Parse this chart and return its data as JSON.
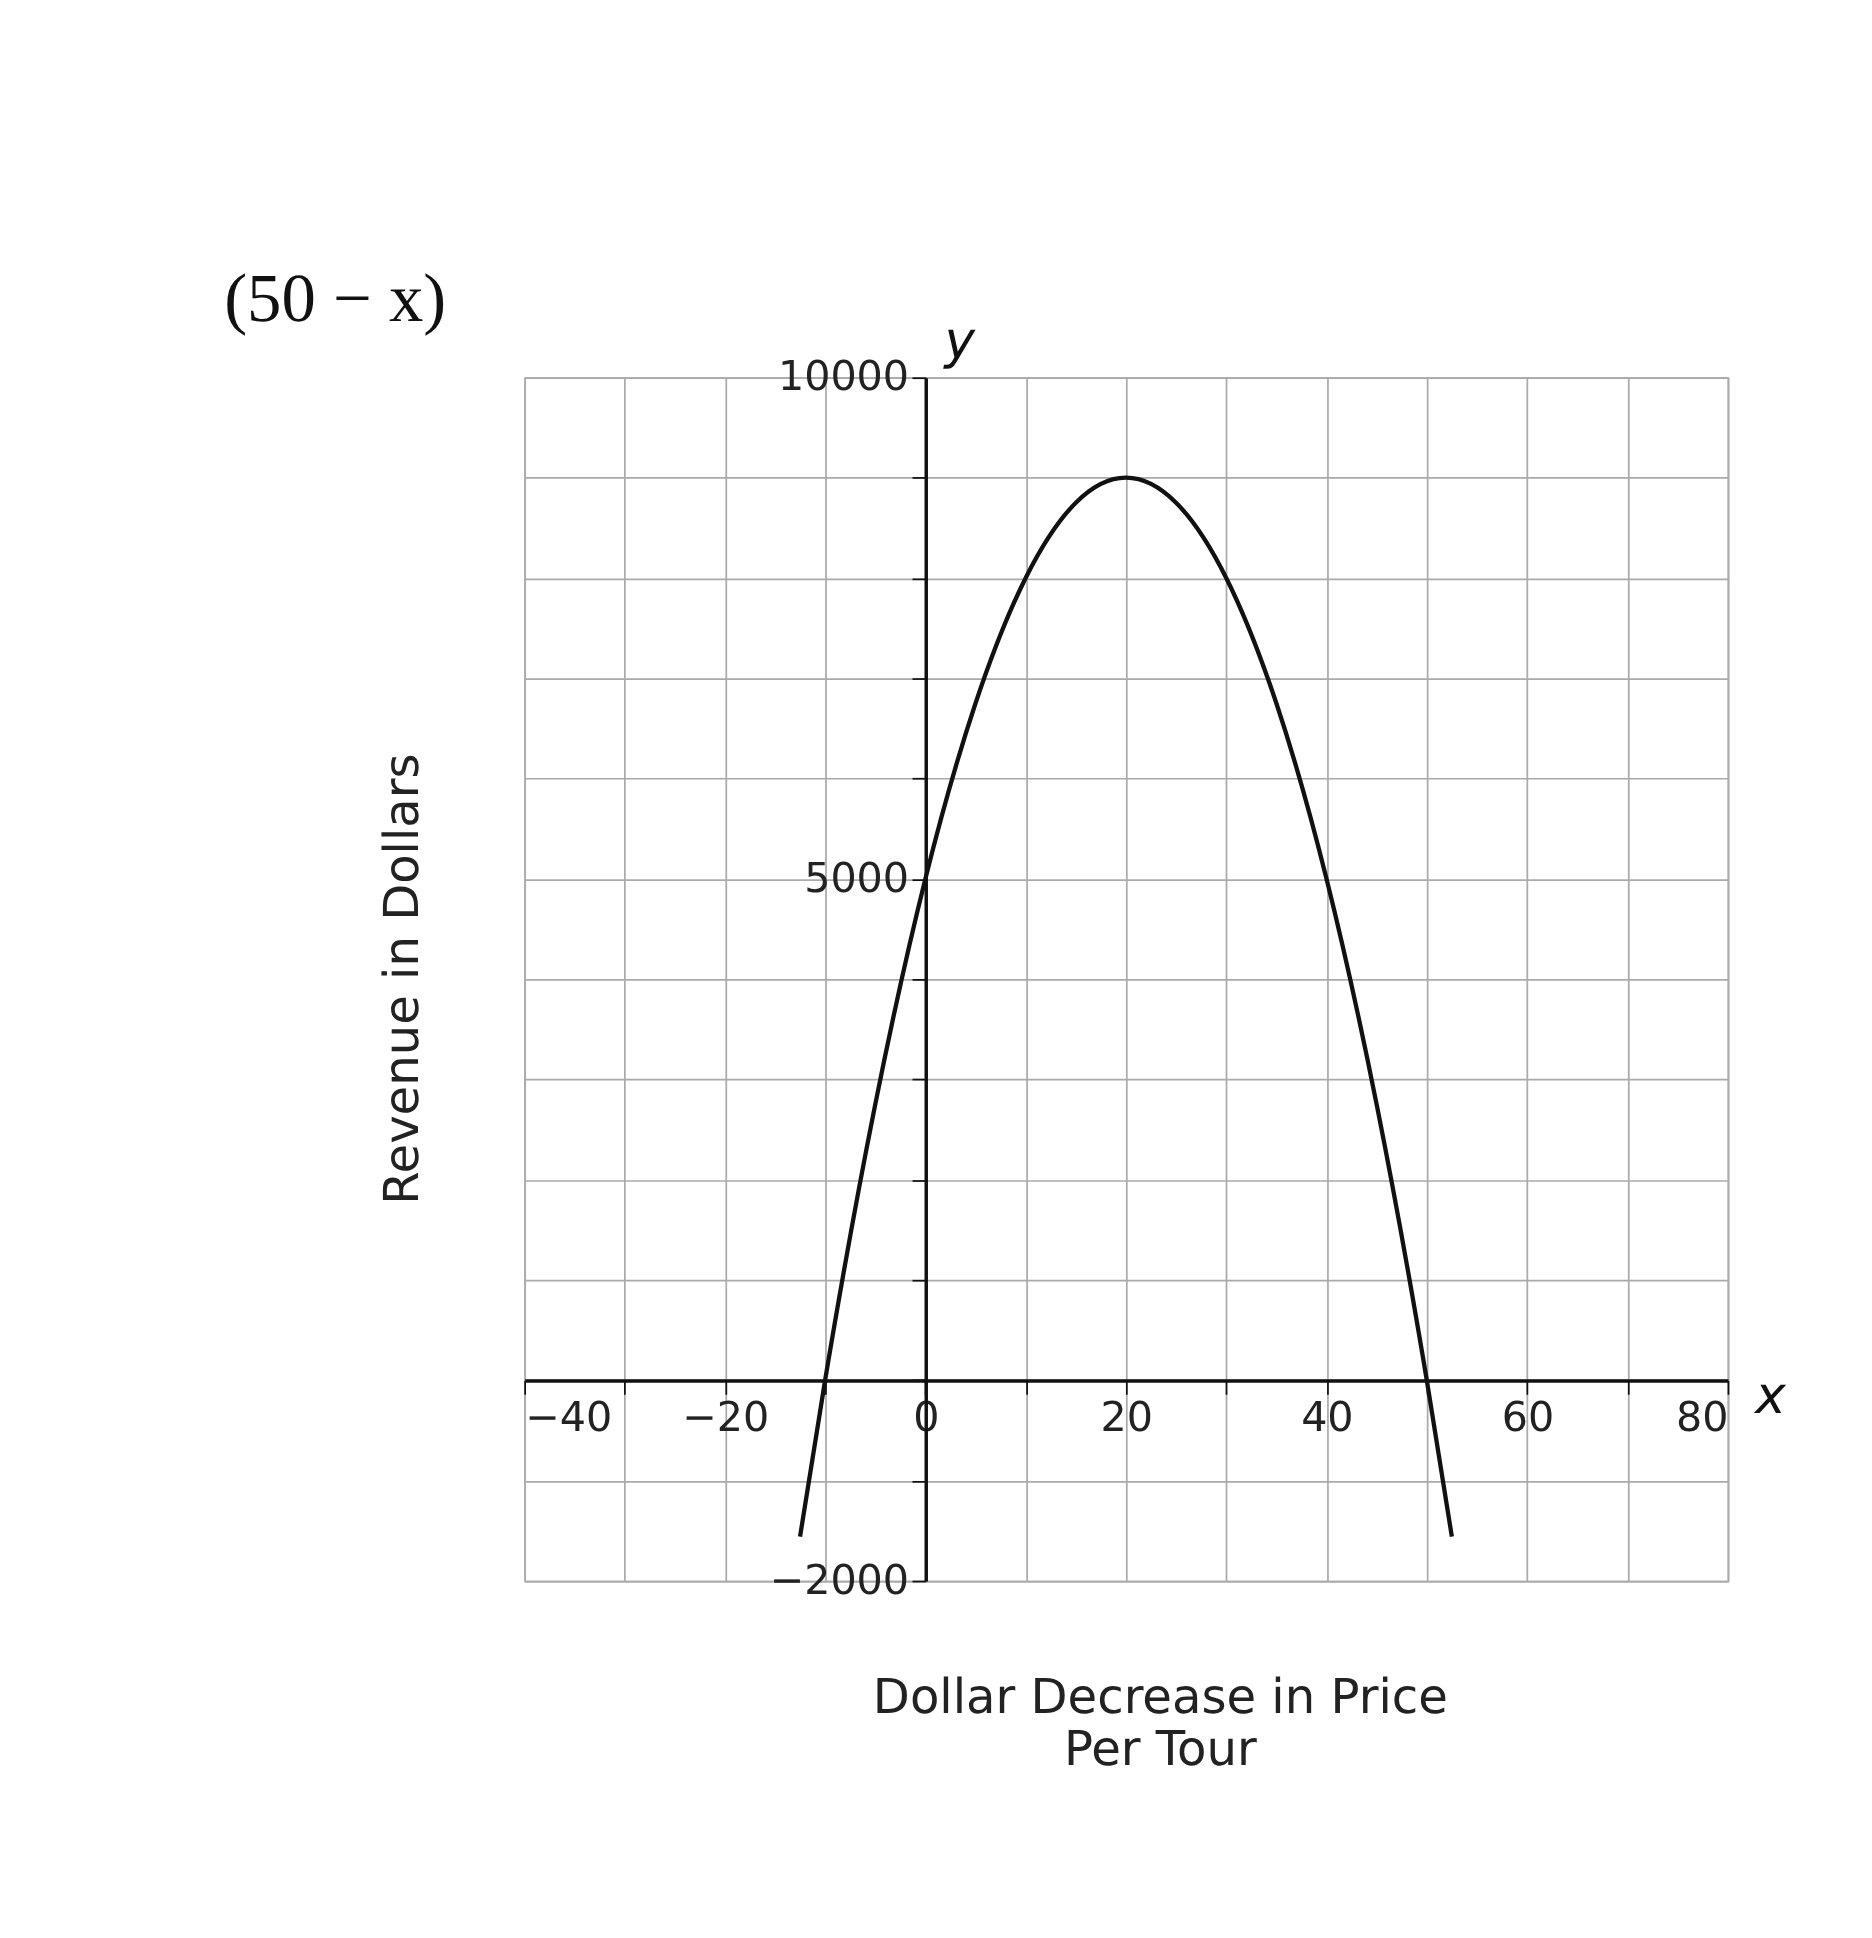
{
  "chart_data": {
    "type": "line",
    "xlabel": "Dollar Decrease in Price\nPer Tour",
    "ylabel": "Revenue in Dollars",
    "annotations": [
      "(50 − x)",
      "y",
      "x"
    ],
    "x": [
      -12.5,
      -10,
      -5,
      0,
      5,
      10,
      15,
      20,
      25,
      30,
      35,
      40,
      45,
      50,
      52.5
    ],
    "series": [
      {
        "color": "#111111",
        "values": [
          -1560,
          0,
          2750,
          5000,
          6750,
          8000,
          8750,
          9000,
          8750,
          8000,
          6750,
          5000,
          2750,
          0,
          -1560
        ]
      }
    ],
    "xlim": [
      -40,
      80
    ],
    "ylim": [
      -2000,
      10000
    ],
    "xticks": [
      {
        "value": -40,
        "label": "−40"
      },
      {
        "value": -30,
        "label": null
      },
      {
        "value": -20,
        "label": "−20"
      },
      {
        "value": -10,
        "label": null
      },
      0,
      {
        "value": 10,
        "label": null
      },
      20,
      {
        "value": 30,
        "label": null
      },
      40,
      {
        "value": 50,
        "label": null
      },
      60,
      {
        "value": 70,
        "label": null
      },
      80
    ],
    "yticks": [
      {
        "value": -2000,
        "label": "−2000"
      },
      {
        "value": -1000,
        "label": null
      },
      {
        "value": 0,
        "label": null
      },
      {
        "value": 1000,
        "label": null
      },
      {
        "value": 2000,
        "label": null
      },
      {
        "value": 3000,
        "label": null
      },
      {
        "value": 4000,
        "label": null
      },
      5000,
      {
        "value": 6000,
        "label": null
      },
      {
        "value": 7000,
        "label": null
      },
      {
        "value": 8000,
        "label": null
      },
      {
        "value": 9000,
        "label": null
      },
      10000
    ],
    "grid": true,
    "marker": "none",
    "line_style": "solid"
  }
}
